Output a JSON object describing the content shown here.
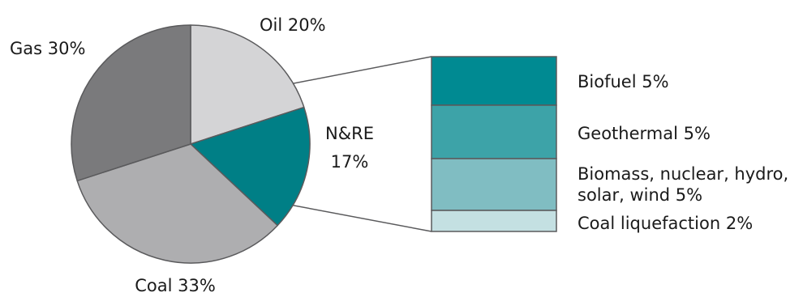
{
  "chart_data": {
    "type": "pie",
    "slices": [
      {
        "label": "Oil 20%",
        "value": 20,
        "color": "#d4d4d6"
      },
      {
        "label": "N&RE",
        "sublabel": "17%",
        "value": 17,
        "color": "#007f86"
      },
      {
        "label": "Coal 33%",
        "value": 33,
        "color": "#aeaeb0"
      },
      {
        "label": "Gas 30%",
        "value": 30,
        "color": "#7a7a7c"
      }
    ],
    "breakdown": {
      "parent": "N&RE",
      "items": [
        {
          "label": "Biofuel 5%",
          "value": 5,
          "color": "#008a92"
        },
        {
          "label": "Geothermal 5%",
          "value": 5,
          "color": "#3da3a8"
        },
        {
          "label": [
            "Biomass, nuclear, hydro,",
            "solar, wind 5%"
          ],
          "value": 5,
          "color": "#80bdc2"
        },
        {
          "label": "Coal liquefaction 2%",
          "value": 2,
          "color": "#c4e0e2"
        }
      ]
    },
    "colors": {
      "outline": "#5a5a5c",
      "text": "#1a1a1a"
    }
  }
}
